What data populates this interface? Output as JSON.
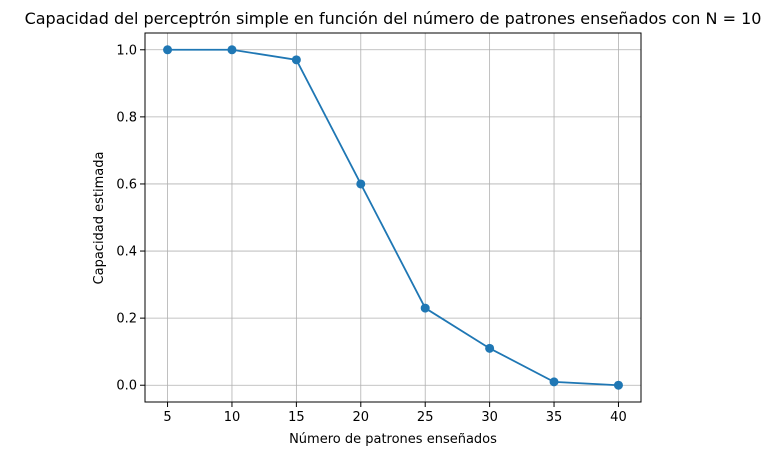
{
  "chart_data": {
    "type": "line",
    "title": "Capacidad del perceptrón simple en función del número de patrones enseñados con N = 10",
    "xlabel": "Número de patrones enseñados",
    "ylabel": "Capacidad estimada",
    "x": [
      5,
      10,
      15,
      20,
      25,
      30,
      35,
      40
    ],
    "series": [
      {
        "values": [
          1.0,
          1.0,
          0.97,
          0.6,
          0.23,
          0.11,
          0.01,
          0.0
        ]
      }
    ],
    "xticks": [
      "5",
      "10",
      "15",
      "20",
      "25",
      "30",
      "35",
      "40"
    ],
    "yticks": [
      "0.0",
      "0.2",
      "0.4",
      "0.6",
      "0.8",
      "1.0"
    ],
    "xlim": [
      3.25,
      41.75
    ],
    "ylim": [
      -0.05,
      1.05
    ],
    "grid": true,
    "line_color": "#1f77b4",
    "grid_color": "#b0b0b0",
    "marker": "circle"
  }
}
